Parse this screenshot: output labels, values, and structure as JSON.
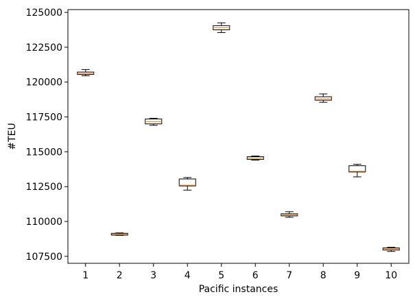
{
  "chart_data": {
    "type": "box",
    "xlabel": "Pacific instances",
    "ylabel": "#TEU",
    "ylim": [
      107000,
      125200
    ],
    "yticks": [
      107500,
      110000,
      112500,
      115000,
      117500,
      120000,
      122500,
      125000
    ],
    "grid": false,
    "colors": {
      "box_edge": "#000000",
      "median": "#ff7f0e",
      "background": "#ffffff"
    },
    "categories": [
      "1",
      "2",
      "3",
      "4",
      "5",
      "6",
      "7",
      "8",
      "9",
      "10"
    ],
    "boxes": [
      {
        "category": "1",
        "whisker_low": 120450,
        "q1": 120550,
        "median": 120620,
        "q3": 120720,
        "whisker_high": 120900
      },
      {
        "category": "2",
        "whisker_low": 109000,
        "q1": 109020,
        "median": 109080,
        "q3": 109150,
        "whisker_high": 109180
      },
      {
        "category": "3",
        "whisker_low": 116900,
        "q1": 117000,
        "median": 117150,
        "q3": 117350,
        "whisker_high": 117400
      },
      {
        "category": "4",
        "whisker_low": 112250,
        "q1": 112550,
        "median": 112600,
        "q3": 113050,
        "whisker_high": 113150
      },
      {
        "category": "5",
        "whisker_low": 123550,
        "q1": 123750,
        "median": 123900,
        "q3": 124050,
        "whisker_high": 124250
      },
      {
        "category": "6",
        "whisker_low": 114400,
        "q1": 114450,
        "median": 114550,
        "q3": 114650,
        "whisker_high": 114700
      },
      {
        "category": "7",
        "whisker_low": 110300,
        "q1": 110400,
        "median": 110480,
        "q3": 110550,
        "whisker_high": 110700
      },
      {
        "category": "8",
        "whisker_low": 118550,
        "q1": 118700,
        "median": 118800,
        "q3": 118950,
        "whisker_high": 119150
      },
      {
        "category": "9",
        "whisker_low": 113200,
        "q1": 113550,
        "median": 113600,
        "q3": 114000,
        "whisker_high": 114100
      },
      {
        "category": "10",
        "whisker_low": 107850,
        "q1": 107950,
        "median": 108030,
        "q3": 108100,
        "whisker_high": 108150
      }
    ]
  }
}
